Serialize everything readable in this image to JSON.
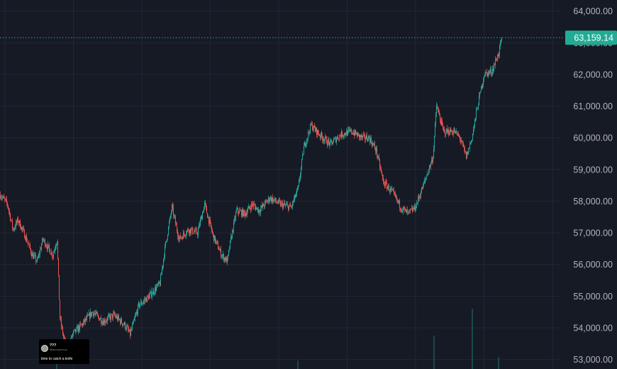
{
  "chart_data": {
    "type": "candlestick",
    "y_axis_position": "right",
    "ylim": [
      52700,
      64350
    ],
    "y_ticks": [
      "64,000.00",
      "63,000.00",
      "62,000.00",
      "61,000.00",
      "60,000.00",
      "59,000.00",
      "58,000.00",
      "57,000.00",
      "56,000.00",
      "55,000.00",
      "54,000.00",
      "53,000.00"
    ],
    "y_tick_values": [
      64000,
      63000,
      62000,
      61000,
      60000,
      59000,
      58000,
      57000,
      56000,
      55000,
      54000,
      53000
    ],
    "last_price": 63159.14,
    "last_price_label": "63,159.14",
    "grid": true,
    "colors": {
      "background": "#161a25",
      "grid": "#232735",
      "up": "#26a69a",
      "down": "#ef5350",
      "price_line": "#22ab94",
      "axis_text": "#b2b5be"
    },
    "price_path": [
      [
        0,
        58200
      ],
      [
        10,
        57900
      ],
      [
        18,
        57100
      ],
      [
        25,
        57400
      ],
      [
        35,
        56900
      ],
      [
        45,
        56300
      ],
      [
        52,
        56100
      ],
      [
        60,
        56800
      ],
      [
        68,
        56500
      ],
      [
        74,
        56300
      ],
      [
        80,
        56800
      ],
      [
        84,
        54300
      ],
      [
        90,
        53600
      ],
      [
        95,
        53300
      ],
      [
        102,
        53800
      ],
      [
        115,
        54100
      ],
      [
        130,
        54500
      ],
      [
        145,
        54200
      ],
      [
        160,
        54400
      ],
      [
        175,
        54100
      ],
      [
        183,
        53800
      ],
      [
        195,
        54700
      ],
      [
        210,
        55000
      ],
      [
        225,
        55400
      ],
      [
        232,
        56500
      ],
      [
        242,
        57800
      ],
      [
        252,
        56800
      ],
      [
        265,
        57100
      ],
      [
        278,
        57000
      ],
      [
        288,
        57900
      ],
      [
        300,
        56900
      ],
      [
        312,
        56300
      ],
      [
        320,
        56100
      ],
      [
        325,
        56800
      ],
      [
        333,
        57700
      ],
      [
        345,
        57600
      ],
      [
        355,
        57900
      ],
      [
        365,
        57700
      ],
      [
        380,
        58100
      ],
      [
        395,
        57900
      ],
      [
        410,
        57800
      ],
      [
        420,
        58400
      ],
      [
        428,
        59700
      ],
      [
        438,
        60400
      ],
      [
        450,
        60100
      ],
      [
        465,
        59800
      ],
      [
        480,
        60100
      ],
      [
        495,
        60200
      ],
      [
        510,
        60000
      ],
      [
        520,
        60000
      ],
      [
        530,
        59600
      ],
      [
        540,
        58600
      ],
      [
        552,
        58300
      ],
      [
        565,
        57800
      ],
      [
        575,
        57600
      ],
      [
        585,
        57800
      ],
      [
        598,
        58600
      ],
      [
        610,
        59400
      ],
      [
        615,
        61000
      ],
      [
        625,
        60200
      ],
      [
        640,
        60200
      ],
      [
        648,
        60000
      ],
      [
        657,
        59400
      ],
      [
        665,
        60000
      ],
      [
        672,
        60900
      ],
      [
        682,
        62000
      ],
      [
        693,
        62100
      ],
      [
        703,
        62700
      ],
      [
        707,
        63159
      ]
    ],
    "volume_bars": [
      {
        "x": 612,
        "volume": 0.55
      },
      {
        "x": 666,
        "volume": 1.0
      },
      {
        "x": 420,
        "volume": 0.14
      },
      {
        "x": 703,
        "volume": 0.2
      },
      {
        "x": 80,
        "volume": 0.18
      }
    ]
  },
  "annotation": {
    "name": "???",
    "handle": "@anonymous",
    "text": "time to catch a knife"
  }
}
